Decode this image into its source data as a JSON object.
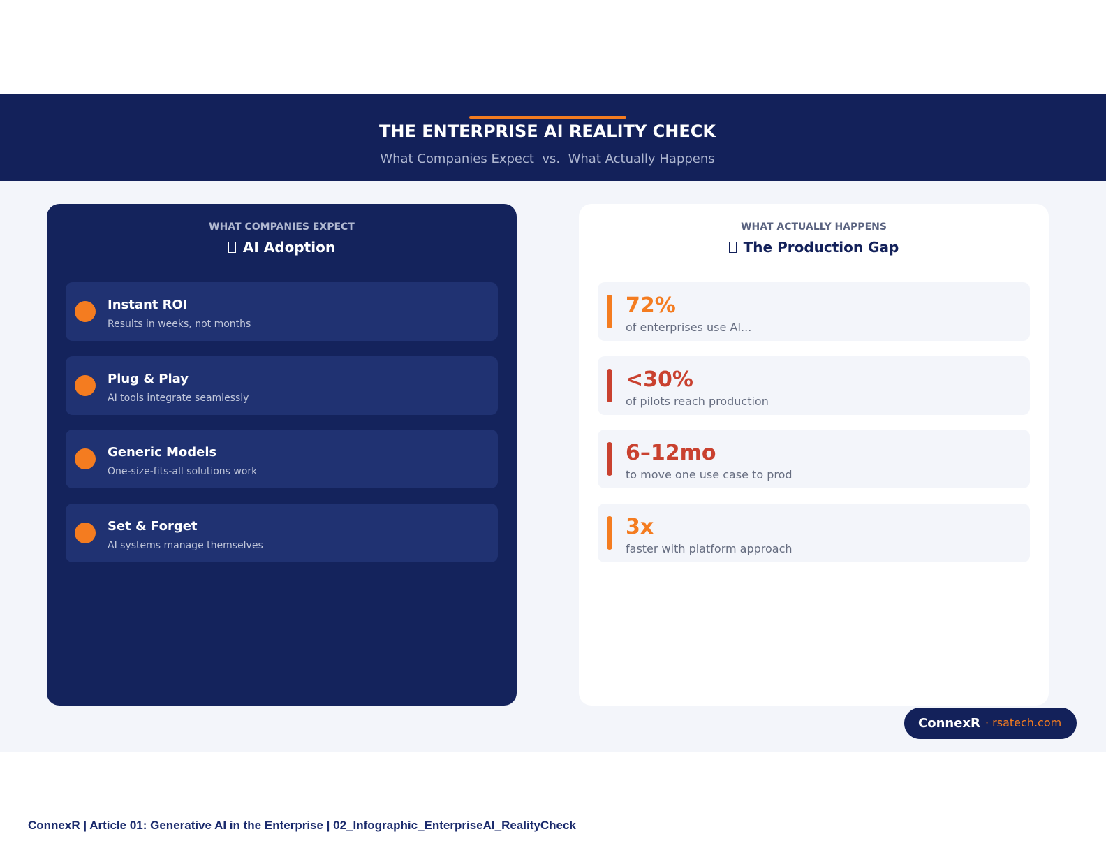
{
  "header": {
    "title": "THE ENTERPRISE AI REALITY CHECK",
    "subtitle": "What Companies Expect  vs.  What Actually Happens"
  },
  "left": {
    "kicker": "WHAT COMPANIES EXPECT",
    "heading": "AI Adoption",
    "items": [
      {
        "title": "Instant ROI",
        "desc": "Results in weeks, not months"
      },
      {
        "title": "Plug & Play",
        "desc": "AI tools integrate seamlessly"
      },
      {
        "title": "Generic Models",
        "desc": "One-size-fits-all solutions work"
      },
      {
        "title": "Set & Forget",
        "desc": "AI systems manage themselves"
      }
    ]
  },
  "right": {
    "kicker": "WHAT ACTUALLY HAPPENS",
    "heading": "The Production Gap",
    "stats": [
      {
        "value": "72%",
        "label": "of enterprises use AI...",
        "color": "#f47c20"
      },
      {
        "value": "<30%",
        "label": "of pilots reach production",
        "color": "#c9412f"
      },
      {
        "value": "6–12mo",
        "label": "to move one use case to prod",
        "color": "#c9412f"
      },
      {
        "value": "3x",
        "label": "faster with platform approach",
        "color": "#f47c20"
      }
    ]
  },
  "badge": {
    "brand": "ConnexR",
    "site": "· rsatech.com"
  },
  "footer": "ConnexR | Article 01: Generative AI in the Enterprise | 02_Infographic_EnterpriseAI_RealityCheck"
}
